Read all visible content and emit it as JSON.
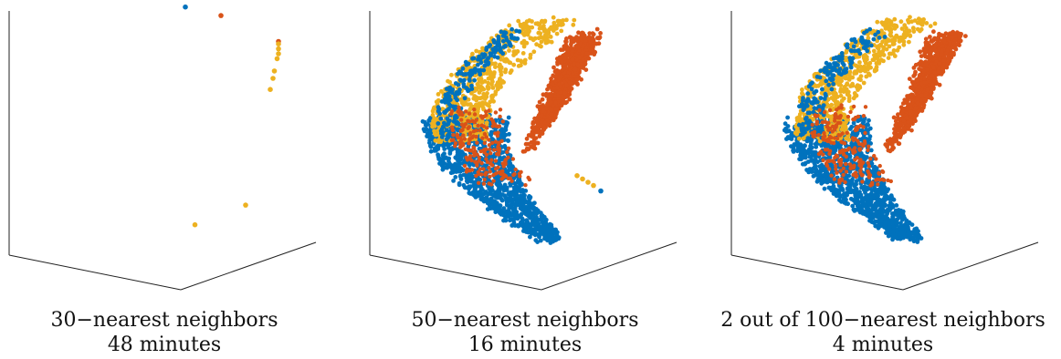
{
  "colors": {
    "blue": "#0072BD",
    "orange": "#D95319",
    "yellow": "#EDB120",
    "axis": "#222222"
  },
  "chart_data": [
    {
      "type": "scatter",
      "subtype": "3d-embedding",
      "caption_line1": "30−nearest neighbors",
      "caption_line2": "48 minutes",
      "grid": false,
      "legend": "none",
      "series": [
        {
          "color": "blue",
          "points": [
            [
              0.02,
              0.98
            ]
          ]
        },
        {
          "color": "orange",
          "points": [
            [
              0.28,
              0.91
            ],
            [
              0.7,
              0.7
            ]
          ]
        },
        {
          "color": "yellow",
          "points": [
            [
              0.7,
              0.68
            ],
            [
              0.7,
              0.64
            ],
            [
              0.7,
              0.6
            ],
            [
              0.69,
              0.56
            ],
            [
              0.67,
              0.46
            ],
            [
              0.66,
              0.4
            ],
            [
              0.64,
              0.31
            ],
            [
              0.09,
              -0.79
            ],
            [
              0.46,
              -0.63
            ]
          ]
        }
      ]
    },
    {
      "type": "scatter",
      "subtype": "3d-embedding",
      "caption_line1": "50−nearest neighbors",
      "caption_line2": "16 minutes",
      "grid": false,
      "legend": "none",
      "clusters": [
        {
          "color": "blue",
          "region": "lower arc of crescent"
        },
        {
          "color": "orange",
          "region": "upper-right horn of crescent"
        },
        {
          "color": "yellow",
          "region": "upper-left band of crescent"
        }
      ],
      "outliers": [
        {
          "color": "yellow",
          "points": [
            [
              0.72,
              -0.44
            ],
            [
              0.78,
              -0.47
            ],
            [
              0.84,
              -0.5
            ],
            [
              0.9,
              -0.53
            ]
          ]
        },
        {
          "color": "blue",
          "points": [
            [
              0.98,
              -0.58
            ]
          ]
        }
      ]
    },
    {
      "type": "scatter",
      "subtype": "3d-embedding",
      "caption_line1": "2 out of 100−nearest neighbors",
      "caption_line2": "4 minutes",
      "grid": false,
      "legend": "none",
      "clusters": [
        {
          "color": "blue",
          "region": "lower arc of crescent"
        },
        {
          "color": "orange",
          "region": "upper-right horn of crescent"
        },
        {
          "color": "yellow",
          "region": "upper-left band of crescent"
        }
      ]
    }
  ]
}
